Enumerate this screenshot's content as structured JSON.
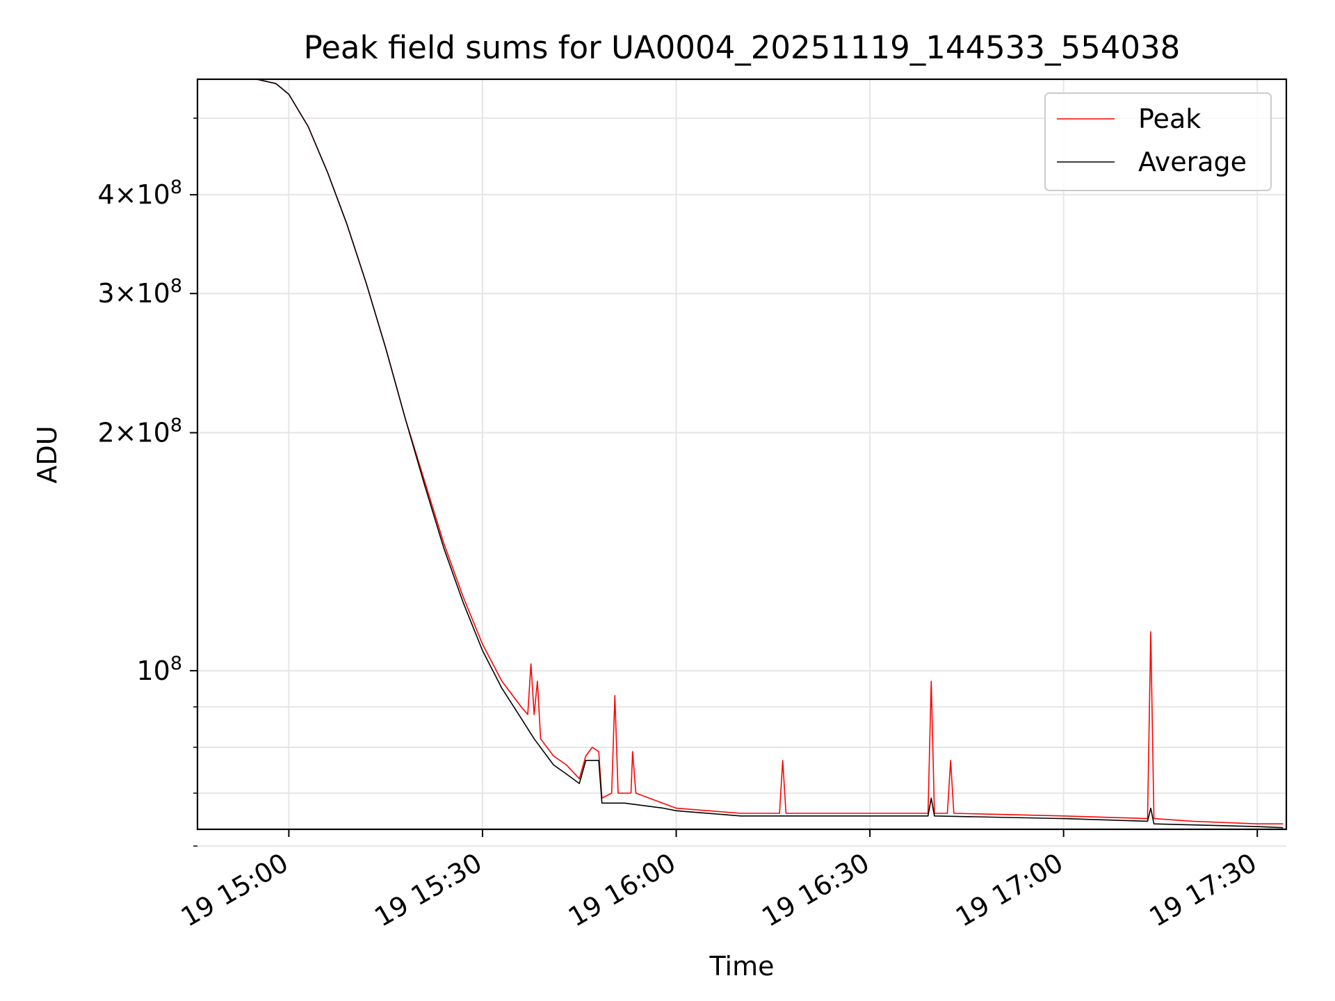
{
  "chart_data": {
    "type": "line",
    "title": "Peak field sums for UA0004_20251119_144533_554038",
    "xlabel": "Time",
    "ylabel": "ADU",
    "x_scale": "time",
    "y_scale": "log",
    "xlim": [
      "2025-11-19 14:45:51",
      "2025-11-19 17:34:30"
    ],
    "ylim": [
      63000000,
      560000000
    ],
    "x_ticks": [
      {
        "t": "2025-11-19 15:00",
        "label": "19 15:00"
      },
      {
        "t": "2025-11-19 15:30",
        "label": "19 15:30"
      },
      {
        "t": "2025-11-19 16:00",
        "label": "19 16:00"
      },
      {
        "t": "2025-11-19 16:30",
        "label": "19 16:30"
      },
      {
        "t": "2025-11-19 17:00",
        "label": "19 17:00"
      },
      {
        "t": "2025-11-19 17:30",
        "label": "19 17:30"
      }
    ],
    "y_ticks_major": [
      {
        "value": 100000000,
        "mantissa": "",
        "exponent": "8"
      },
      {
        "value": 200000000,
        "mantissa": "2",
        "exponent": "8"
      },
      {
        "value": 300000000,
        "mantissa": "3",
        "exponent": "8"
      },
      {
        "value": 400000000,
        "mantissa": "4",
        "exponent": "8"
      }
    ],
    "y_ticks_minor": [
      60000000,
      70000000,
      80000000,
      90000000,
      500000000
    ],
    "grid": true,
    "legend_position": "top-right",
    "series": [
      {
        "name": "Peak",
        "color": "#ff0000",
        "points": [
          [
            "2025-11-19 14:55",
            560000000
          ],
          [
            "2025-11-19 14:58",
            553000000
          ],
          [
            "2025-11-19 15:00",
            536000000
          ],
          [
            "2025-11-19 15:03",
            488000000
          ],
          [
            "2025-11-19 15:06",
            427000000
          ],
          [
            "2025-11-19 15:09",
            367000000
          ],
          [
            "2025-11-19 15:12",
            309000000
          ],
          [
            "2025-11-19 15:15",
            256000000
          ],
          [
            "2025-11-19 15:18",
            209000000
          ],
          [
            "2025-11-19 15:21",
            174000000
          ],
          [
            "2025-11-19 15:24",
            145000000
          ],
          [
            "2025-11-19 15:27",
            124000000
          ],
          [
            "2025-11-19 15:30",
            108000000
          ],
          [
            "2025-11-19 15:33",
            97000000
          ],
          [
            "2025-11-19 15:36",
            90000000
          ],
          [
            "2025-11-19 15:37",
            88000000
          ],
          [
            "2025-11-19 15:37:30",
            102000000
          ],
          [
            "2025-11-19 15:38",
            88000000
          ],
          [
            "2025-11-19 15:38:30",
            97000000
          ],
          [
            "2025-11-19 15:39",
            82000000
          ],
          [
            "2025-11-19 15:41",
            78000000
          ],
          [
            "2025-11-19 15:43",
            76000000
          ],
          [
            "2025-11-19 15:45",
            73000000
          ],
          [
            "2025-11-19 15:46",
            78000000
          ],
          [
            "2025-11-19 15:47",
            80000000
          ],
          [
            "2025-11-19 15:48",
            79000000
          ],
          [
            "2025-11-19 15:48:30",
            69000000
          ],
          [
            "2025-11-19 15:50",
            70000000
          ],
          [
            "2025-11-19 15:50:30",
            93000000
          ],
          [
            "2025-11-19 15:51",
            70000000
          ],
          [
            "2025-11-19 15:53",
            70000000
          ],
          [
            "2025-11-19 15:53:15",
            79000000
          ],
          [
            "2025-11-19 15:53:45",
            70000000
          ],
          [
            "2025-11-19 16:00",
            67000000
          ],
          [
            "2025-11-19 16:10",
            66000000
          ],
          [
            "2025-11-19 16:16",
            66000000
          ],
          [
            "2025-11-19 16:16:30",
            77000000
          ],
          [
            "2025-11-19 16:17",
            66000000
          ],
          [
            "2025-11-19 16:30",
            66000000
          ],
          [
            "2025-11-19 16:39",
            66000000
          ],
          [
            "2025-11-19 16:39:30",
            97000000
          ],
          [
            "2025-11-19 16:40",
            66000000
          ],
          [
            "2025-11-19 16:42",
            66000000
          ],
          [
            "2025-11-19 16:42:30",
            77000000
          ],
          [
            "2025-11-19 16:43",
            66000000
          ],
          [
            "2025-11-19 17:00",
            65500000
          ],
          [
            "2025-11-19 17:13",
            65000000
          ],
          [
            "2025-11-19 17:13:30",
            112000000
          ],
          [
            "2025-11-19 17:14",
            65000000
          ],
          [
            "2025-11-19 17:20",
            64500000
          ],
          [
            "2025-11-19 17:30",
            64000000
          ],
          [
            "2025-11-19 17:34",
            64000000
          ]
        ]
      },
      {
        "name": "Average",
        "color": "#000000",
        "points": [
          [
            "2025-11-19 14:55",
            560000000
          ],
          [
            "2025-11-19 14:58",
            553000000
          ],
          [
            "2025-11-19 15:00",
            536000000
          ],
          [
            "2025-11-19 15:03",
            488000000
          ],
          [
            "2025-11-19 15:06",
            427000000
          ],
          [
            "2025-11-19 15:09",
            367000000
          ],
          [
            "2025-11-19 15:12",
            309000000
          ],
          [
            "2025-11-19 15:15",
            256000000
          ],
          [
            "2025-11-19 15:18",
            209000000
          ],
          [
            "2025-11-19 15:21",
            172000000
          ],
          [
            "2025-11-19 15:24",
            143000000
          ],
          [
            "2025-11-19 15:27",
            122000000
          ],
          [
            "2025-11-19 15:30",
            106000000
          ],
          [
            "2025-11-19 15:33",
            95000000
          ],
          [
            "2025-11-19 15:36",
            87000000
          ],
          [
            "2025-11-19 15:38",
            82000000
          ],
          [
            "2025-11-19 15:41",
            76000000
          ],
          [
            "2025-11-19 15:43",
            74000000
          ],
          [
            "2025-11-19 15:45",
            72000000
          ],
          [
            "2025-11-19 15:46",
            77000000
          ],
          [
            "2025-11-19 15:48",
            77000000
          ],
          [
            "2025-11-19 15:48:30",
            68000000
          ],
          [
            "2025-11-19 15:52",
            68000000
          ],
          [
            "2025-11-19 15:58",
            67000000
          ],
          [
            "2025-11-19 16:00",
            66500000
          ],
          [
            "2025-11-19 16:10",
            65500000
          ],
          [
            "2025-11-19 16:30",
            65500000
          ],
          [
            "2025-11-19 16:39",
            65500000
          ],
          [
            "2025-11-19 16:39:30",
            69000000
          ],
          [
            "2025-11-19 16:40",
            65500000
          ],
          [
            "2025-11-19 17:00",
            65000000
          ],
          [
            "2025-11-19 17:13",
            64500000
          ],
          [
            "2025-11-19 17:13:30",
            67000000
          ],
          [
            "2025-11-19 17:14",
            64000000
          ],
          [
            "2025-11-19 17:30",
            63500000
          ],
          [
            "2025-11-19 17:34",
            63300000
          ]
        ]
      }
    ]
  }
}
